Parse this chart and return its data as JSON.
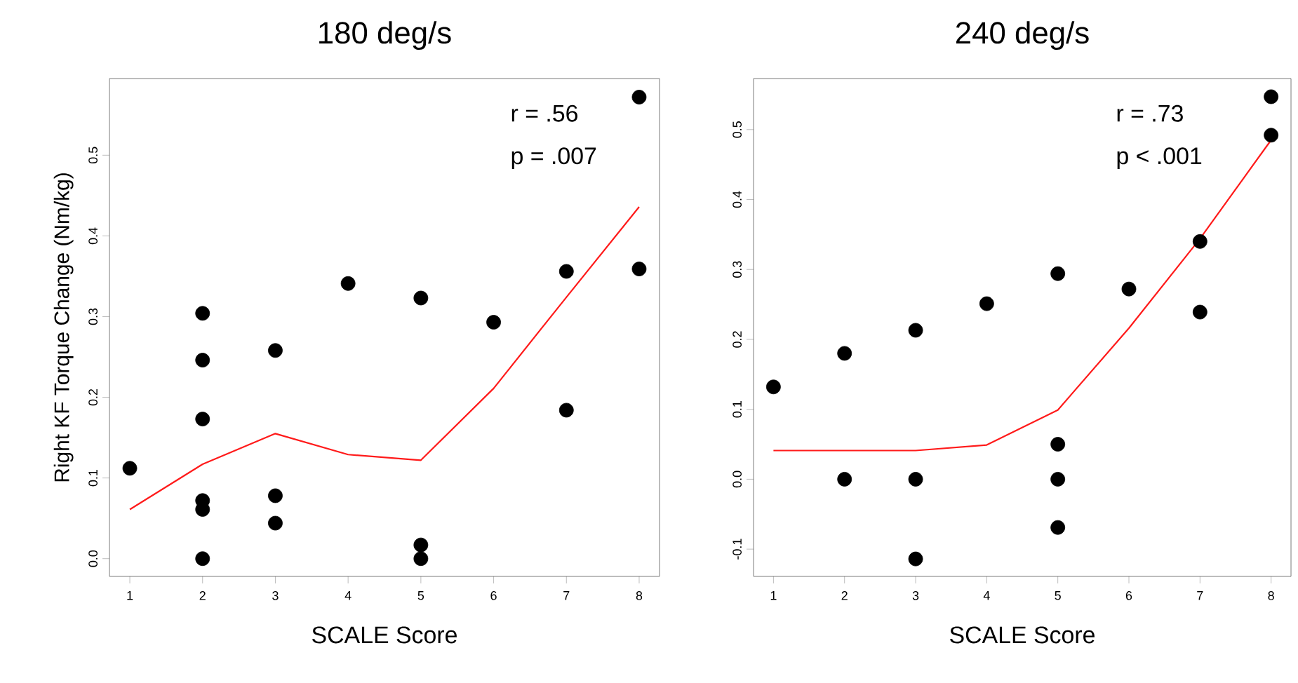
{
  "chart_data": [
    {
      "type": "scatter",
      "title": "180 deg/s",
      "xlabel": "SCALE Score",
      "ylabel": "Right KF Torque Change (Nm/kg)",
      "marker": "circle",
      "line_style": "solid",
      "xlim": [
        0.72,
        8.28
      ],
      "ylim": [
        -0.022,
        0.595
      ],
      "xticks": [
        1,
        2,
        3,
        4,
        5,
        6,
        7,
        8
      ],
      "yticks": [
        {
          "value": 0,
          "label": "0.0"
        },
        {
          "value": 0.1,
          "label": "0.1"
        },
        {
          "value": 0.2,
          "label": "0.2"
        },
        {
          "value": 0.3,
          "label": "0.3"
        },
        {
          "value": 0.4,
          "label": "0.4"
        },
        {
          "value": 0.5,
          "label": "0.5"
        }
      ],
      "annotations": [
        "r = .56",
        "p = .007"
      ],
      "series": [
        {
          "type": "scatter",
          "color": "#000000",
          "x": [
            1,
            2,
            2,
            2,
            2,
            2,
            2,
            3,
            3,
            3,
            4,
            5,
            5,
            5,
            6,
            7,
            7,
            8,
            8
          ],
          "values": [
            0.112,
            0.304,
            0.246,
            0.173,
            0.072,
            0.061,
            0.0,
            0.258,
            0.078,
            0.044,
            0.341,
            0.323,
            0.017,
            0.0,
            0.293,
            0.356,
            0.184,
            0.572,
            0.359
          ]
        },
        {
          "type": "line",
          "marker": "none",
          "color": "#ff1a1a",
          "x": [
            1,
            2,
            3,
            4,
            5,
            6,
            7,
            8
          ],
          "values": [
            0.061,
            0.117,
            0.155,
            0.129,
            0.122,
            0.211,
            0.324,
            0.436
          ]
        }
      ]
    },
    {
      "type": "scatter",
      "title": "240 deg/s",
      "xlabel": "SCALE Score",
      "marker": "circle",
      "line_style": "solid",
      "xlim": [
        0.72,
        8.28
      ],
      "ylim": [
        -0.139,
        0.573
      ],
      "xticks": [
        1,
        2,
        3,
        4,
        5,
        6,
        7,
        8
      ],
      "yticks": [
        {
          "value": -0.1,
          "label": "-0.1"
        },
        {
          "value": 0,
          "label": "0.0"
        },
        {
          "value": 0.1,
          "label": "0.1"
        },
        {
          "value": 0.2,
          "label": "0.2"
        },
        {
          "value": 0.3,
          "label": "0.3"
        },
        {
          "value": 0.4,
          "label": "0.4"
        },
        {
          "value": 0.5,
          "label": "0.5"
        }
      ],
      "annotations": [
        "r = .73",
        "p < .001"
      ],
      "series": [
        {
          "type": "scatter",
          "color": "#000000",
          "x": [
            1,
            2,
            2,
            3,
            3,
            3,
            4,
            5,
            5,
            5,
            5,
            6,
            7,
            7,
            8,
            8
          ],
          "values": [
            0.132,
            0.18,
            0.0,
            0.213,
            0.0,
            -0.114,
            0.251,
            0.294,
            0.05,
            0.0,
            -0.069,
            0.272,
            0.34,
            0.239,
            0.547,
            0.492
          ]
        },
        {
          "type": "line",
          "marker": "none",
          "color": "#ff1a1a",
          "x": [
            1,
            2,
            3,
            4,
            5,
            6,
            7,
            8
          ],
          "values": [
            0.041,
            0.041,
            0.041,
            0.049,
            0.099,
            0.216,
            0.344,
            0.485
          ]
        }
      ]
    }
  ]
}
